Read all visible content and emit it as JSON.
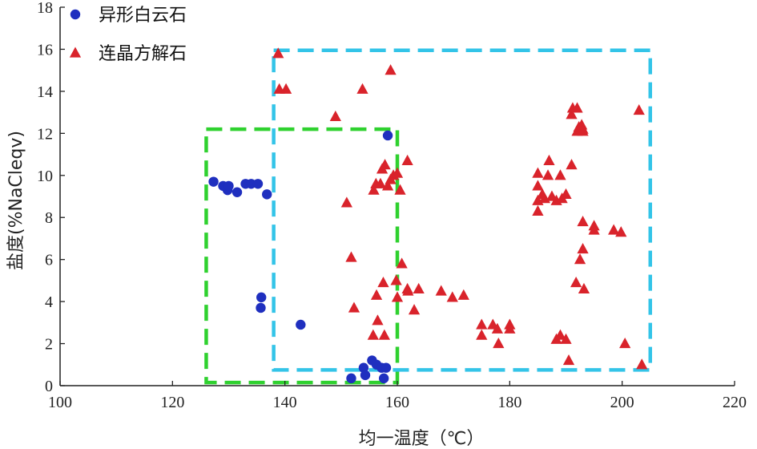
{
  "chart_data": {
    "type": "scatter",
    "title": "",
    "xlabel": "均一温度（℃）",
    "ylabel": "盐度(%NaCleqv)",
    "xlim": [
      100,
      220
    ],
    "ylim": [
      0,
      18
    ],
    "xticks": [
      100,
      120,
      140,
      160,
      180,
      200,
      220
    ],
    "yticks": [
      0,
      2,
      4,
      6,
      8,
      10,
      12,
      14,
      16,
      18
    ],
    "grid": false,
    "legend_position": "top-left",
    "series": [
      {
        "name": "异形白云石",
        "marker": "circle",
        "color": "#1f2fbf",
        "points": [
          [
            127.3,
            9.7
          ],
          [
            129.0,
            9.5
          ],
          [
            129.8,
            9.3
          ],
          [
            130.0,
            9.5
          ],
          [
            131.5,
            9.2
          ],
          [
            133.0,
            9.6
          ],
          [
            134.0,
            9.6
          ],
          [
            135.2,
            9.6
          ],
          [
            136.8,
            9.1
          ],
          [
            135.8,
            4.2
          ],
          [
            135.7,
            3.7
          ],
          [
            142.8,
            2.9
          ],
          [
            151.8,
            0.35
          ],
          [
            154.0,
            0.85
          ],
          [
            154.3,
            0.5
          ],
          [
            155.5,
            1.2
          ],
          [
            156.3,
            1.0
          ],
          [
            157.2,
            0.85
          ],
          [
            158.0,
            0.85
          ],
          [
            157.6,
            0.35
          ],
          [
            158.3,
            11.9
          ]
        ]
      },
      {
        "name": "连晶方解石",
        "marker": "triangle",
        "color": "#d9232b",
        "points": [
          [
            138.8,
            15.8
          ],
          [
            139.0,
            14.1
          ],
          [
            140.2,
            14.1
          ],
          [
            149.0,
            12.8
          ],
          [
            153.8,
            14.1
          ],
          [
            158.8,
            15.0
          ],
          [
            151.0,
            8.7
          ],
          [
            151.8,
            6.1
          ],
          [
            152.3,
            3.7
          ],
          [
            155.7,
            2.4
          ],
          [
            156.5,
            3.1
          ],
          [
            157.7,
            2.4
          ],
          [
            156.3,
            4.3
          ],
          [
            157.5,
            4.9
          ],
          [
            155.8,
            9.3
          ],
          [
            156.2,
            9.6
          ],
          [
            157.0,
            9.6
          ],
          [
            157.3,
            10.3
          ],
          [
            157.8,
            10.5
          ],
          [
            158.3,
            9.5
          ],
          [
            158.8,
            9.8
          ],
          [
            159.3,
            10.0
          ],
          [
            160.0,
            10.1
          ],
          [
            160.5,
            9.3
          ],
          [
            161.8,
            10.7
          ],
          [
            159.8,
            5.0
          ],
          [
            160.0,
            4.2
          ],
          [
            160.8,
            5.8
          ],
          [
            161.8,
            4.6
          ],
          [
            161.9,
            4.5
          ],
          [
            163.0,
            3.6
          ],
          [
            163.8,
            4.6
          ],
          [
            167.8,
            4.5
          ],
          [
            169.8,
            4.2
          ],
          [
            171.8,
            4.3
          ],
          [
            175.0,
            2.9
          ],
          [
            175.0,
            2.4
          ],
          [
            177.0,
            2.9
          ],
          [
            177.8,
            2.7
          ],
          [
            178.0,
            2.0
          ],
          [
            180.0,
            2.9
          ],
          [
            180.0,
            2.7
          ],
          [
            185.0,
            10.1
          ],
          [
            185.0,
            9.5
          ],
          [
            185.0,
            8.8
          ],
          [
            185.0,
            8.3
          ],
          [
            185.8,
            9.1
          ],
          [
            186.8,
            10.0
          ],
          [
            187.0,
            10.7
          ],
          [
            186.2,
            8.9
          ],
          [
            187.5,
            9.0
          ],
          [
            188.3,
            8.8
          ],
          [
            189.0,
            10.0
          ],
          [
            189.3,
            8.9
          ],
          [
            190.0,
            9.1
          ],
          [
            191.0,
            10.5
          ],
          [
            191.0,
            12.9
          ],
          [
            191.2,
            13.2
          ],
          [
            192.0,
            13.2
          ],
          [
            192.0,
            12.1
          ],
          [
            192.3,
            12.3
          ],
          [
            192.8,
            12.4
          ],
          [
            193.0,
            12.2
          ],
          [
            193.0,
            12.1
          ],
          [
            191.8,
            4.9
          ],
          [
            192.5,
            6.0
          ],
          [
            193.0,
            6.5
          ],
          [
            193.0,
            7.8
          ],
          [
            193.2,
            4.6
          ],
          [
            195.0,
            7.6
          ],
          [
            195.0,
            7.4
          ],
          [
            198.5,
            7.4
          ],
          [
            199.8,
            7.3
          ],
          [
            188.3,
            2.2
          ],
          [
            189.0,
            2.4
          ],
          [
            190.0,
            2.2
          ],
          [
            190.5,
            1.2
          ],
          [
            200.5,
            2.0
          ],
          [
            203.0,
            13.1
          ],
          [
            203.5,
            1.0
          ]
        ]
      }
    ],
    "annotations": [
      {
        "name": "green-dashed-region",
        "shape": "dashed-rectangle",
        "color": "#2fd12f",
        "x_range": [
          126,
          160
        ],
        "y_range": [
          0.15,
          12.2
        ]
      },
      {
        "name": "cyan-dashed-region",
        "shape": "dashed-rectangle",
        "color": "#33c4e8",
        "x_range": [
          138,
          205
        ],
        "y_range": [
          0.75,
          15.95
        ]
      }
    ]
  }
}
